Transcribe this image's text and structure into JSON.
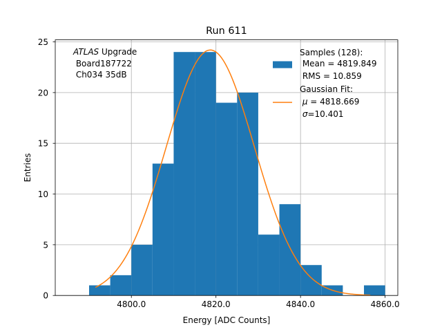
{
  "chart_data": {
    "type": "bar",
    "title": "Run 611",
    "xlabel": "Energy [ADC Counts]",
    "ylabel": "Entries",
    "xlim": [
      4782,
      4863
    ],
    "ylim": [
      0,
      25.2
    ],
    "grid": true,
    "xticks": [
      4800,
      4820,
      4840,
      4860
    ],
    "xtick_labels": [
      "4800.0",
      "4820.0",
      "4840.0",
      "4860.0"
    ],
    "yticks": [
      0,
      5,
      10,
      15,
      20,
      25
    ],
    "ytick_labels": [
      "0",
      "5",
      "10",
      "15",
      "20",
      "25"
    ],
    "bin_width": 5,
    "bins": [
      {
        "left": 4790,
        "count": 1
      },
      {
        "left": 4795,
        "count": 2
      },
      {
        "left": 4800,
        "count": 5
      },
      {
        "left": 4805,
        "count": 13
      },
      {
        "left": 4810,
        "count": 24
      },
      {
        "left": 4815,
        "count": 24
      },
      {
        "left": 4820,
        "count": 19
      },
      {
        "left": 4825,
        "count": 20
      },
      {
        "left": 4830,
        "count": 6
      },
      {
        "left": 4835,
        "count": 9
      },
      {
        "left": 4840,
        "count": 3
      },
      {
        "left": 4845,
        "count": 1
      },
      {
        "left": 4850,
        "count": 0
      },
      {
        "left": 4855,
        "count": 1
      }
    ],
    "fit": {
      "mu": 4818.669,
      "sigma": 10.401,
      "amplitude": 24.2,
      "x_range": [
        4791.5,
        4856.5
      ]
    },
    "colors": {
      "bars": "#1f77b4",
      "fit": "#ff7f0e",
      "grid": "#b0b0b0"
    },
    "annotation": {
      "line1_italic": "ATLAS",
      "line1_rest": " Upgrade",
      "line2": " Board187722",
      "line3": " Ch034 35dB"
    },
    "legend": {
      "location": "top-right",
      "hist_lines": [
        "Samples (128):",
        " Mean = 4819.849",
        " RMS = 10.859"
      ],
      "fit_line1": "Gaussian Fit:",
      "fit_mu_symbol": "μ",
      "fit_mu_rest": " = 4818.669",
      "fit_sigma_symbol": "σ",
      "fit_sigma_rest": "=10.401"
    }
  }
}
